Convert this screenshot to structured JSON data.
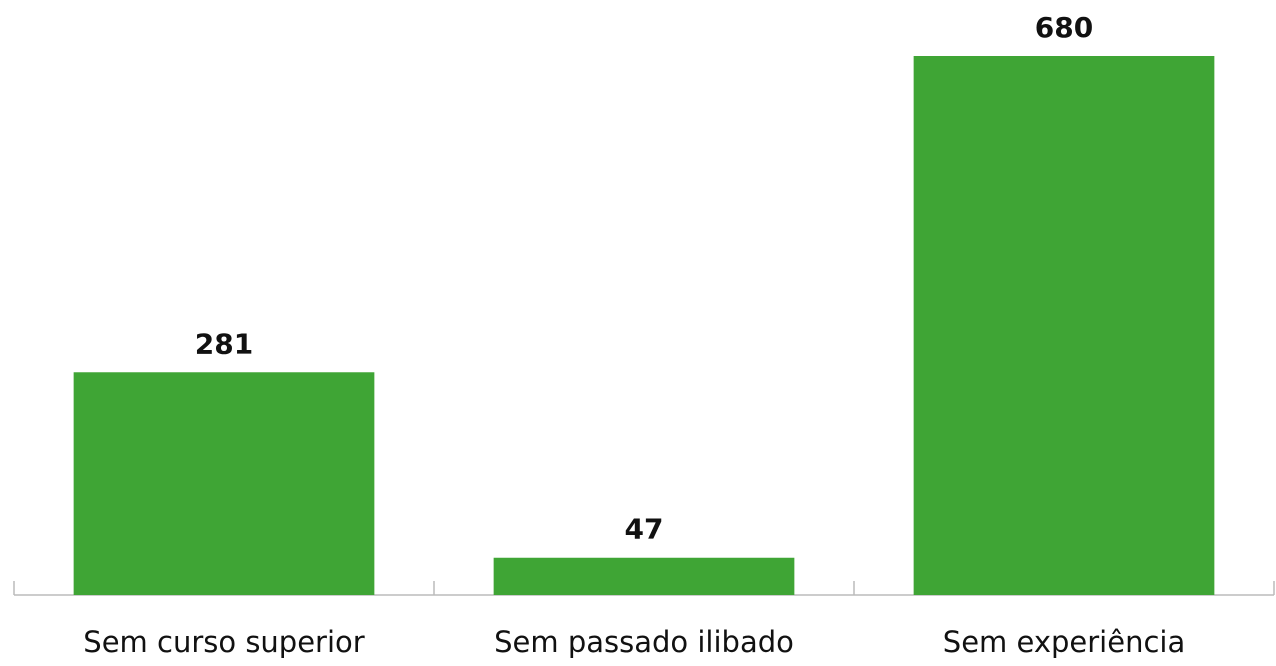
{
  "chart_data": {
    "type": "bar",
    "categories": [
      "Sem curso superior",
      "Sem passado ilibado",
      "Sem experiência"
    ],
    "values": [
      281,
      47,
      680
    ],
    "color": "#3fa535"
  }
}
